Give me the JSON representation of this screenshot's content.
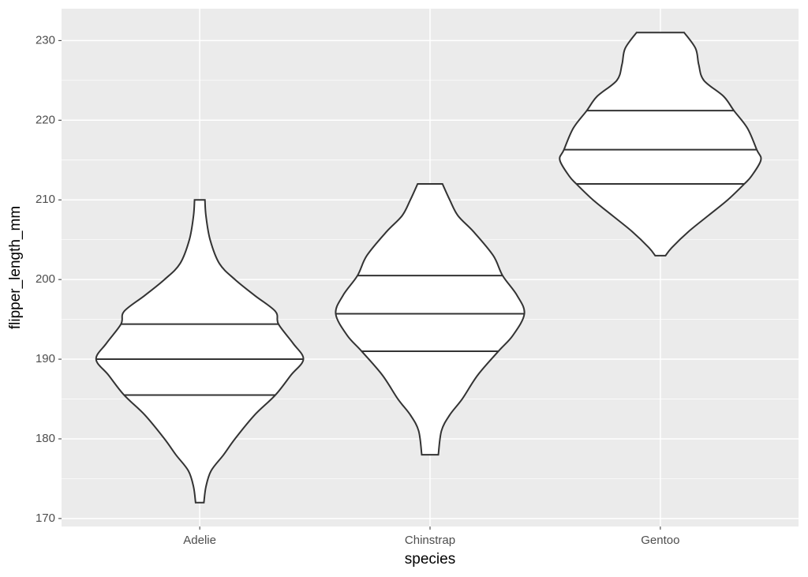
{
  "chart_data": {
    "type": "violin",
    "x_label": "species",
    "y_label": "flipper_length_mm",
    "categories": [
      "Adelie",
      "Chinstrap",
      "Gentoo"
    ],
    "ylim": [
      169,
      234
    ],
    "yticks": [
      170,
      180,
      190,
      200,
      210,
      220,
      230
    ],
    "grid": true,
    "fill": "#ffffff",
    "stroke": "#333333",
    "violins": [
      {
        "quantiles": [
          185.5,
          190,
          194.4
        ],
        "profile": {
          "y": [
            210,
            208,
            205,
            202,
            200,
            198,
            196,
            194.4,
            192,
            190,
            188,
            185.5,
            183,
            180,
            178,
            176,
            174,
            172
          ],
          "width": [
            0.05,
            0.06,
            0.1,
            0.19,
            0.34,
            0.53,
            0.73,
            0.76,
            0.9,
            1.0,
            0.88,
            0.73,
            0.53,
            0.34,
            0.23,
            0.11,
            0.06,
            0.04
          ]
        }
      },
      {
        "quantiles": [
          191,
          195.7,
          200.5
        ],
        "profile": {
          "y": [
            212,
            210,
            208,
            206,
            203,
            200.5,
            198,
            195.7,
            193,
            191,
            188,
            185,
            183,
            181,
            178
          ],
          "width": [
            0.12,
            0.19,
            0.27,
            0.42,
            0.61,
            0.7,
            0.84,
            0.91,
            0.8,
            0.66,
            0.46,
            0.31,
            0.19,
            0.11,
            0.08
          ]
        }
      },
      {
        "quantiles": [
          212,
          216.3,
          221.2
        ],
        "profile": {
          "y": [
            231,
            229,
            227,
            225,
            223,
            221.2,
            219,
            216.3,
            215,
            213,
            212,
            210,
            208,
            206,
            204,
            203
          ],
          "width": [
            0.23,
            0.34,
            0.37,
            0.42,
            0.61,
            0.71,
            0.84,
            0.93,
            0.97,
            0.88,
            0.81,
            0.65,
            0.46,
            0.27,
            0.11,
            0.05
          ]
        }
      }
    ]
  }
}
